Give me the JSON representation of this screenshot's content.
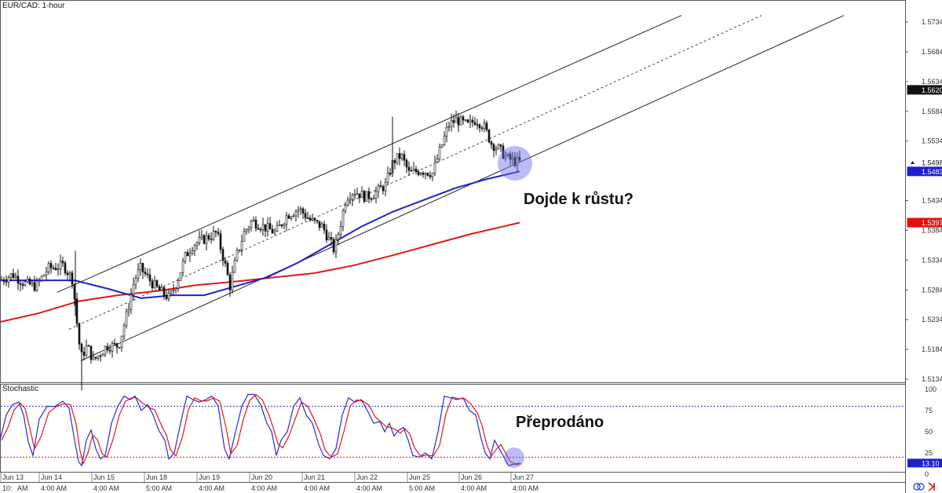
{
  "chart_data": [
    {
      "type": "candlestick",
      "title": "EUR/CAD: 1-hour",
      "ylim": [
        1.511,
        1.5755
      ],
      "y_ticks": [
        "1.5734",
        "1.5684",
        "1.5634",
        "1.5584",
        "1.5534",
        "1.5434",
        "1.5384",
        "1.5334",
        "1.5284",
        "1.5234",
        "1.5184",
        "1.5134"
      ],
      "y_tick_values": [
        1.5734,
        1.5684,
        1.5634,
        1.5584,
        1.5534,
        1.5434,
        1.5384,
        1.5334,
        1.5284,
        1.5234,
        1.5184,
        1.5134
      ],
      "price_tags": [
        {
          "label": "1.5620",
          "value": 1.562,
          "color": "#111111",
          "text_color": "#ffffff"
        },
        {
          "label": "1.5498",
          "value": 1.5498,
          "color": "#ffffff",
          "text_color": "#111111"
        },
        {
          "label": "1.5483",
          "value": 1.5483,
          "color": "#1f1fd0",
          "text_color": "#ffffff"
        },
        {
          "label": "1.5397",
          "value": 1.5397,
          "color": "#e01010",
          "text_color": "#ffffff"
        }
      ],
      "candle_path": [
        [
          0,
          1.53
        ],
        [
          15,
          1.531
        ],
        [
          30,
          1.5295
        ],
        [
          45,
          1.529
        ],
        [
          60,
          1.532
        ],
        [
          80,
          1.5325
        ],
        [
          92,
          1.53
        ],
        [
          96,
          1.524
        ],
        [
          102,
          1.517
        ],
        [
          110,
          1.519
        ],
        [
          118,
          1.5165
        ],
        [
          125,
          1.5175
        ],
        [
          135,
          1.519
        ],
        [
          150,
          1.519
        ],
        [
          160,
          1.524
        ],
        [
          170,
          1.53
        ],
        [
          178,
          1.532
        ],
        [
          190,
          1.53
        ],
        [
          200,
          1.5285
        ],
        [
          215,
          1.527
        ],
        [
          225,
          1.53
        ],
        [
          235,
          1.534
        ],
        [
          245,
          1.536
        ],
        [
          260,
          1.537
        ],
        [
          275,
          1.538
        ],
        [
          285,
          1.533
        ],
        [
          292,
          1.529
        ],
        [
          300,
          1.534
        ],
        [
          310,
          1.538
        ],
        [
          320,
          1.54
        ],
        [
          335,
          1.539
        ],
        [
          350,
          1.538
        ],
        [
          365,
          1.541
        ],
        [
          380,
          1.542
        ],
        [
          395,
          1.54
        ],
        [
          410,
          1.539
        ],
        [
          425,
          1.535
        ],
        [
          432,
          1.539
        ],
        [
          440,
          1.544
        ],
        [
          450,
          1.545
        ],
        [
          465,
          1.544
        ],
        [
          475,
          1.5445
        ],
        [
          490,
          1.546
        ],
        [
          500,
          1.55
        ],
        [
          510,
          1.551
        ],
        [
          520,
          1.548
        ],
        [
          535,
          1.5485
        ],
        [
          550,
          1.548
        ],
        [
          560,
          1.552
        ],
        [
          570,
          1.556
        ],
        [
          580,
          1.557
        ],
        [
          595,
          1.556
        ],
        [
          605,
          1.557
        ],
        [
          615,
          1.556
        ],
        [
          625,
          1.553
        ],
        [
          635,
          1.552
        ],
        [
          645,
          1.5505
        ],
        [
          655,
          1.55
        ],
        [
          662,
          1.5498
        ]
      ],
      "ma_blue": [
        [
          0,
          1.53
        ],
        [
          40,
          1.53
        ],
        [
          95,
          1.53
        ],
        [
          140,
          1.5285
        ],
        [
          180,
          1.527
        ],
        [
          220,
          1.5275
        ],
        [
          260,
          1.5275
        ],
        [
          300,
          1.529
        ],
        [
          340,
          1.5305
        ],
        [
          380,
          1.533
        ],
        [
          420,
          1.536
        ],
        [
          460,
          1.539
        ],
        [
          500,
          1.5415
        ],
        [
          540,
          1.5435
        ],
        [
          580,
          1.5455
        ],
        [
          620,
          1.547
        ],
        [
          662,
          1.5483
        ]
      ],
      "ma_red": [
        [
          0,
          1.523
        ],
        [
          50,
          1.5245
        ],
        [
          100,
          1.5265
        ],
        [
          150,
          1.5275
        ],
        [
          200,
          1.5282
        ],
        [
          250,
          1.5292
        ],
        [
          300,
          1.5298
        ],
        [
          350,
          1.5305
        ],
        [
          400,
          1.5312
        ],
        [
          450,
          1.5325
        ],
        [
          500,
          1.5342
        ],
        [
          550,
          1.536
        ],
        [
          600,
          1.5378
        ],
        [
          662,
          1.5397
        ]
      ],
      "channel": {
        "upper": [
          [
            73,
            1.528
          ],
          [
            868,
            1.5745
          ]
        ],
        "middle": [
          [
            88,
            1.5218
          ],
          [
            970,
            1.5745
          ]
        ],
        "lower": [
          [
            103,
            1.5165
          ],
          [
            1075,
            1.5745
          ]
        ]
      },
      "annotation": "Dojde k růstu?"
    },
    {
      "type": "line",
      "title": "Stochastic",
      "ylim": [
        0,
        100
      ],
      "y_ticks": [
        "100",
        "75",
        "50",
        "25",
        "0"
      ],
      "y_tick_values": [
        100,
        75,
        50,
        25,
        0
      ],
      "levels": [
        80,
        20
      ],
      "current_value": {
        "label": "13.10",
        "value": 13.1
      },
      "k_line": [
        [
          0,
          40
        ],
        [
          8,
          70
        ],
        [
          16,
          82
        ],
        [
          24,
          85
        ],
        [
          30,
          70
        ],
        [
          36,
          38
        ],
        [
          42,
          22
        ],
        [
          50,
          65
        ],
        [
          60,
          80
        ],
        [
          70,
          80
        ],
        [
          80,
          86
        ],
        [
          88,
          78
        ],
        [
          95,
          40
        ],
        [
          100,
          15
        ],
        [
          104,
          10
        ],
        [
          110,
          40
        ],
        [
          116,
          52
        ],
        [
          122,
          30
        ],
        [
          128,
          18
        ],
        [
          134,
          22
        ],
        [
          142,
          60
        ],
        [
          150,
          80
        ],
        [
          158,
          92
        ],
        [
          166,
          88
        ],
        [
          172,
          92
        ],
        [
          180,
          75
        ],
        [
          188,
          82
        ],
        [
          195,
          70
        ],
        [
          202,
          52
        ],
        [
          210,
          40
        ],
        [
          215,
          18
        ],
        [
          222,
          25
        ],
        [
          230,
          60
        ],
        [
          238,
          92
        ],
        [
          246,
          88
        ],
        [
          254,
          85
        ],
        [
          262,
          88
        ],
        [
          270,
          92
        ],
        [
          278,
          80
        ],
        [
          286,
          30
        ],
        [
          292,
          18
        ],
        [
          300,
          50
        ],
        [
          308,
          80
        ],
        [
          316,
          94
        ],
        [
          324,
          94
        ],
        [
          332,
          82
        ],
        [
          340,
          60
        ],
        [
          346,
          50
        ],
        [
          352,
          22
        ],
        [
          358,
          40
        ],
        [
          366,
          50
        ],
        [
          374,
          80
        ],
        [
          382,
          90
        ],
        [
          390,
          70
        ],
        [
          398,
          60
        ],
        [
          406,
          35
        ],
        [
          412,
          22
        ],
        [
          420,
          18
        ],
        [
          428,
          30
        ],
        [
          436,
          70
        ],
        [
          444,
          90
        ],
        [
          452,
          85
        ],
        [
          460,
          88
        ],
        [
          468,
          75
        ],
        [
          476,
          60
        ],
        [
          484,
          62
        ],
        [
          490,
          50
        ],
        [
          496,
          60
        ],
        [
          502,
          45
        ],
        [
          508,
          52
        ],
        [
          514,
          55
        ],
        [
          520,
          40
        ],
        [
          526,
          22
        ],
        [
          534,
          20
        ],
        [
          542,
          25
        ],
        [
          550,
          18
        ],
        [
          558,
          50
        ],
        [
          566,
          92
        ],
        [
          574,
          90
        ],
        [
          582,
          88
        ],
        [
          590,
          90
        ],
        [
          598,
          75
        ],
        [
          606,
          70
        ],
        [
          612,
          45
        ],
        [
          618,
          25
        ],
        [
          624,
          18
        ],
        [
          630,
          40
        ],
        [
          636,
          30
        ],
        [
          642,
          20
        ],
        [
          648,
          10
        ],
        [
          656,
          12
        ],
        [
          662,
          13
        ]
      ],
      "annotation": "Přeprodáno"
    }
  ],
  "x_axis": {
    "top_labels": [
      "Jun 13",
      "Jun 14",
      "Jun 15",
      "Jun 18",
      "Jun 19",
      "Jun 20",
      "Jun 21",
      "Jun 22",
      "Jun 25",
      "Jun 26",
      "Jun 27"
    ],
    "bottom_labels": [
      "10:",
      "AM",
      "4:00 AM",
      "4:00 AM",
      "5:00 AM",
      "4:00 AM",
      "4:00 AM",
      "4:00 AM",
      "4:00 AM",
      "5:00 AM",
      "4:00 AM",
      "4:00 AM"
    ]
  },
  "icons": {
    "bottom_right": [
      "link-icon",
      "arrow-icon"
    ]
  }
}
